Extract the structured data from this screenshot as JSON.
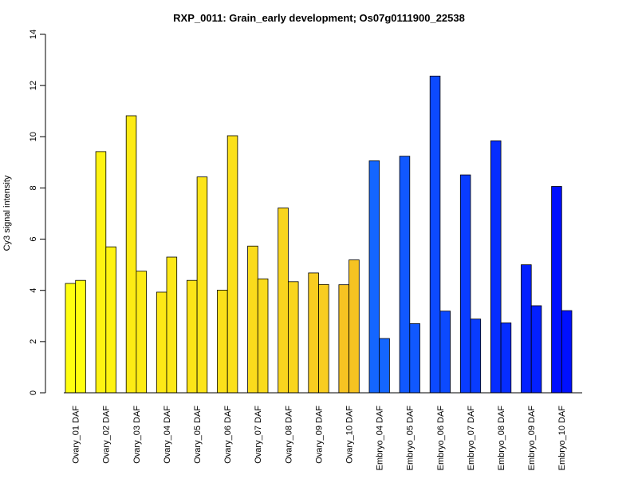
{
  "chart_data": {
    "type": "bar",
    "title": "RXP_0011: Grain_early development; Os07g0111900_22538",
    "xlabel": "",
    "ylabel": "Cy3 signal intensity",
    "ylim": [
      0,
      14
    ],
    "yticks": [
      0,
      2,
      4,
      6,
      8,
      10,
      12,
      14
    ],
    "grid": false,
    "legend": "none",
    "categories": [
      "Ovary_01 DAF",
      "Ovary_02 DAF",
      "Ovary_03 DAF",
      "Ovary_04 DAF",
      "Ovary_05 DAF",
      "Ovary_06 DAF",
      "Ovary_07 DAF",
      "Ovary_08 DAF",
      "Ovary_09 DAF",
      "Ovary_10 DAF",
      "Embryo_04 DAF",
      "Embryo_05 DAF",
      "Embryo_06 DAF",
      "Embryo_07 DAF",
      "Embryo_08 DAF",
      "Embryo_09 DAF",
      "Embryo_10 DAF"
    ],
    "series": [
      {
        "values": [
          4.27,
          9.42,
          10.82,
          3.93,
          4.39,
          4.01,
          5.73,
          7.22,
          4.68,
          4.22,
          9.06,
          9.24,
          12.37,
          8.51,
          9.84,
          5.0,
          8.06
        ]
      },
      {
        "values": [
          4.39,
          5.7,
          4.75,
          5.3,
          8.43,
          10.04,
          4.45,
          4.34,
          4.23,
          5.19,
          2.12,
          2.7,
          3.19,
          2.88,
          2.73,
          3.4,
          3.21
        ]
      }
    ],
    "colors": [
      "#ffff10",
      "#fef312",
      "#fdeb14",
      "#fde816",
      "#fce418",
      "#fbe01a",
      "#fadb1c",
      "#f9d51e",
      "#f8cd20",
      "#f6c322",
      "#1466ff",
      "#1058ff",
      "#0c4aff",
      "#093cff",
      "#062dff",
      "#0320ff",
      "#0010ff"
    ]
  }
}
